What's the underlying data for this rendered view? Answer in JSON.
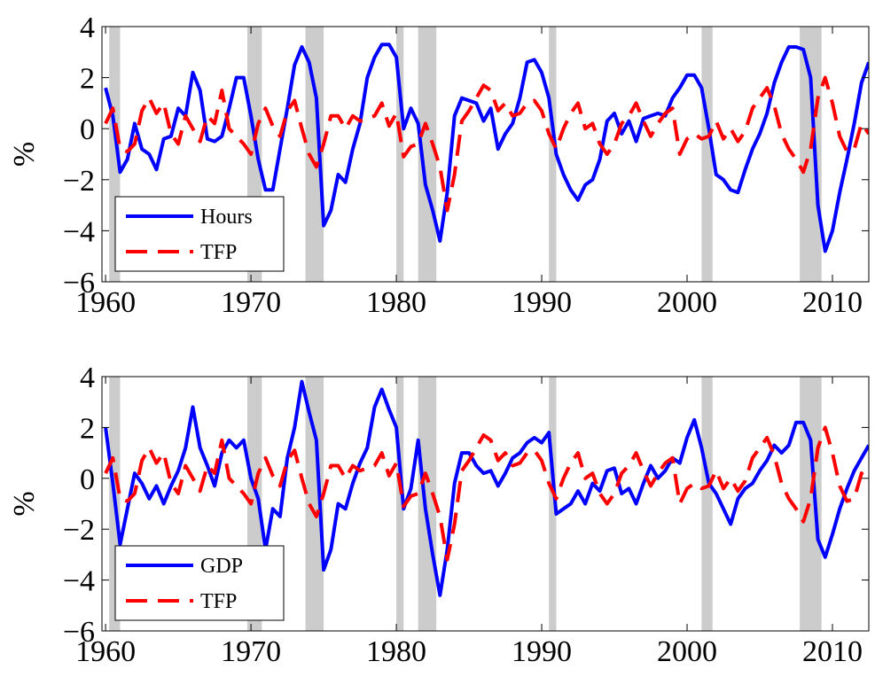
{
  "chart_data": [
    {
      "type": "line",
      "ylabel": "%",
      "legend": "lower left",
      "grid": false,
      "xlim": [
        1959.75,
        2012.5
      ],
      "ylim": [
        -6,
        4
      ],
      "xticks": [
        1960,
        1970,
        1980,
        1990,
        2000,
        2010
      ],
      "yticks": [
        {
          "value": -6,
          "label": "−6"
        },
        {
          "value": -4,
          "label": "−4"
        },
        {
          "value": -2,
          "label": "−2"
        },
        0,
        2,
        4
      ],
      "recessions": [
        [
          1960.25,
          1961.0
        ],
        [
          1969.75,
          1970.75
        ],
        [
          1973.75,
          1975.0
        ],
        [
          1980.0,
          1980.5
        ],
        [
          1981.5,
          1982.75
        ],
        [
          1990.5,
          1991.0
        ],
        [
          2001.0,
          2001.75
        ],
        [
          2007.75,
          2009.25
        ]
      ],
      "recession_color": "#cccccc",
      "x": [
        1960,
        1960.5,
        1961,
        1961.5,
        1962,
        1962.5,
        1963,
        1963.5,
        1964,
        1964.5,
        1965,
        1965.5,
        1966,
        1966.5,
        1967,
        1967.5,
        1968,
        1968.5,
        1969,
        1969.5,
        1970,
        1970.5,
        1971,
        1971.5,
        1972,
        1972.5,
        1973,
        1973.5,
        1974,
        1974.5,
        1975,
        1975.5,
        1976,
        1976.5,
        1977,
        1977.5,
        1978,
        1978.5,
        1979,
        1979.5,
        1980,
        1980.5,
        1981,
        1981.5,
        1982,
        1982.5,
        1983,
        1983.5,
        1984,
        1984.5,
        1985,
        1985.5,
        1986,
        1986.5,
        1987,
        1987.5,
        1988,
        1988.5,
        1989,
        1989.5,
        1990,
        1990.5,
        1991,
        1991.5,
        1992,
        1992.5,
        1993,
        1993.5,
        1994,
        1994.5,
        1995,
        1995.5,
        1996,
        1996.5,
        1997,
        1997.5,
        1998,
        1998.5,
        1999,
        1999.5,
        2000,
        2000.5,
        2001,
        2001.5,
        2002,
        2002.5,
        2003,
        2003.5,
        2004,
        2004.5,
        2005,
        2005.5,
        2006,
        2006.5,
        2007,
        2007.5,
        2008,
        2008.5,
        2009,
        2009.5,
        2010,
        2010.5,
        2011,
        2011.5,
        2012,
        2012.5
      ],
      "series": [
        {
          "name": "Hours",
          "color": "#0000ff",
          "style": "solid",
          "values": [
            1.6,
            0.5,
            -1.7,
            -1.2,
            0.2,
            -0.8,
            -1.0,
            -1.6,
            -0.4,
            -0.3,
            0.8,
            0.5,
            2.2,
            1.5,
            -0.4,
            -0.5,
            -0.3,
            0.8,
            2.0,
            2.0,
            0.5,
            -1.2,
            -2.4,
            -2.4,
            -0.8,
            0.8,
            2.5,
            3.2,
            2.6,
            1.2,
            -3.8,
            -3.2,
            -1.8,
            -2.1,
            -0.8,
            0.2,
            2.0,
            2.8,
            3.3,
            3.3,
            2.8,
            0.0,
            0.8,
            0.2,
            -2.2,
            -3.2,
            -4.4,
            -2.5,
            0.5,
            1.2,
            1.1,
            1.0,
            0.3,
            0.8,
            -0.8,
            -0.2,
            0.2,
            1.2,
            2.6,
            2.7,
            2.2,
            1.2,
            -1.0,
            -1.8,
            -2.4,
            -2.8,
            -2.2,
            -2.0,
            -1.2,
            0.3,
            0.6,
            -0.2,
            0.3,
            -0.5,
            0.4,
            0.5,
            0.6,
            0.5,
            1.2,
            1.6,
            2.1,
            2.1,
            1.6,
            0.0,
            -1.8,
            -2.0,
            -2.4,
            -2.5,
            -1.6,
            -0.8,
            -0.2,
            0.6,
            1.8,
            2.6,
            3.2,
            3.2,
            3.1,
            2.0,
            -3.0,
            -4.8,
            -4.0,
            -2.5,
            -1.2,
            0.2,
            1.8,
            2.6
          ]
        },
        {
          "name": "TFP",
          "color": "#ff0000",
          "style": "dashed",
          "values": [
            0.2,
            0.8,
            -0.8,
            -0.9,
            -0.6,
            0.7,
            1.2,
            0.6,
            1.0,
            -0.2,
            -0.6,
            0.5,
            0.0,
            -0.5,
            0.5,
            0.2,
            1.5,
            0.0,
            -0.3,
            -0.6,
            -1.0,
            0.2,
            0.8,
            0.1,
            -0.3,
            0.7,
            1.1,
            0.0,
            -1.0,
            -1.5,
            -0.6,
            0.5,
            0.5,
            0.0,
            0.5,
            0.3,
            0.4,
            0.5,
            1.0,
            0.1,
            0.6,
            -1.1,
            -0.7,
            -0.6,
            0.2,
            -0.6,
            -1.5,
            -3.2,
            -1.8,
            0.3,
            0.7,
            1.2,
            1.7,
            1.5,
            0.7,
            1.0,
            0.5,
            0.6,
            1.0,
            1.1,
            0.7,
            -0.2,
            -0.8,
            0.0,
            0.6,
            1.0,
            0.0,
            0.2,
            -0.6,
            -1.0,
            -0.6,
            0.2,
            0.5,
            1.0,
            0.3,
            -0.3,
            0.2,
            0.6,
            0.8,
            -1.0,
            -0.4,
            -0.2,
            -0.4,
            -0.3,
            0.3,
            -0.4,
            0.0,
            -0.5,
            -0.1,
            0.8,
            1.2,
            1.6,
            0.9,
            -0.2,
            -0.8,
            -1.2,
            -1.7,
            -0.8,
            1.2,
            2.0,
            1.0,
            -0.3,
            -0.9,
            -0.8,
            0.2,
            -0.2
          ]
        }
      ]
    },
    {
      "type": "line",
      "ylabel": "%",
      "legend": "lower left",
      "grid": false,
      "xlim": [
        1959.75,
        2012.5
      ],
      "ylim": [
        -6,
        4
      ],
      "xticks": [
        1960,
        1970,
        1980,
        1990,
        2000,
        2010
      ],
      "yticks": [
        {
          "value": -6,
          "label": "−6"
        },
        {
          "value": -4,
          "label": "−4"
        },
        {
          "value": -2,
          "label": "−2"
        },
        0,
        2,
        4
      ],
      "recessions": [
        [
          1960.25,
          1961.0
        ],
        [
          1969.75,
          1970.75
        ],
        [
          1973.75,
          1975.0
        ],
        [
          1980.0,
          1980.5
        ],
        [
          1981.5,
          1982.75
        ],
        [
          1990.5,
          1991.0
        ],
        [
          2001.0,
          2001.75
        ],
        [
          2007.75,
          2009.25
        ]
      ],
      "recession_color": "#cccccc",
      "x": [
        1960,
        1960.5,
        1961,
        1961.5,
        1962,
        1962.5,
        1963,
        1963.5,
        1964,
        1964.5,
        1965,
        1965.5,
        1966,
        1966.5,
        1967,
        1967.5,
        1968,
        1968.5,
        1969,
        1969.5,
        1970,
        1970.5,
        1971,
        1971.5,
        1972,
        1972.5,
        1973,
        1973.5,
        1974,
        1974.5,
        1975,
        1975.5,
        1976,
        1976.5,
        1977,
        1977.5,
        1978,
        1978.5,
        1979,
        1979.5,
        1980,
        1980.5,
        1981,
        1981.5,
        1982,
        1982.5,
        1983,
        1983.5,
        1984,
        1984.5,
        1985,
        1985.5,
        1986,
        1986.5,
        1987,
        1987.5,
        1988,
        1988.5,
        1989,
        1989.5,
        1990,
        1990.5,
        1991,
        1991.5,
        1992,
        1992.5,
        1993,
        1993.5,
        1994,
        1994.5,
        1995,
        1995.5,
        1996,
        1996.5,
        1997,
        1997.5,
        1998,
        1998.5,
        1999,
        1999.5,
        2000,
        2000.5,
        2001,
        2001.5,
        2002,
        2002.5,
        2003,
        2003.5,
        2004,
        2004.5,
        2005,
        2005.5,
        2006,
        2006.5,
        2007,
        2007.5,
        2008,
        2008.5,
        2009,
        2009.5,
        2010,
        2010.5,
        2011,
        2011.5,
        2012,
        2012.5
      ],
      "series": [
        {
          "name": "GDP",
          "color": "#0000ff",
          "style": "solid",
          "values": [
            2.0,
            -0.2,
            -2.6,
            -1.2,
            0.2,
            -0.2,
            -0.8,
            -0.3,
            -1.0,
            -0.3,
            0.3,
            1.2,
            2.8,
            1.2,
            0.5,
            -0.3,
            1.0,
            1.5,
            1.2,
            1.5,
            0.0,
            -0.8,
            -2.8,
            -1.2,
            -1.5,
            0.8,
            2.0,
            3.8,
            2.6,
            1.5,
            -3.6,
            -2.8,
            -1.0,
            -1.2,
            -0.2,
            0.6,
            1.2,
            2.8,
            3.5,
            2.7,
            2.0,
            -1.2,
            -0.4,
            1.5,
            -1.2,
            -3.0,
            -4.6,
            -2.8,
            -0.2,
            1.0,
            1.0,
            0.5,
            0.2,
            0.3,
            -0.3,
            0.2,
            0.8,
            1.0,
            1.4,
            1.6,
            1.4,
            1.8,
            -1.4,
            -1.2,
            -1.0,
            -0.5,
            -1.0,
            -0.2,
            -0.5,
            0.3,
            0.4,
            -0.6,
            -0.4,
            -1.0,
            -0.2,
            0.5,
            0.0,
            0.3,
            0.8,
            0.6,
            1.6,
            2.3,
            1.2,
            -0.2,
            -0.6,
            -1.2,
            -1.8,
            -0.8,
            -0.4,
            -0.2,
            0.3,
            0.7,
            1.3,
            1.0,
            1.3,
            2.2,
            2.2,
            1.5,
            -2.4,
            -3.1,
            -2.2,
            -1.2,
            -0.4,
            0.3,
            0.8,
            1.3
          ]
        },
        {
          "name": "TFP",
          "color": "#ff0000",
          "style": "dashed",
          "values": [
            0.2,
            0.8,
            -0.8,
            -0.9,
            -0.6,
            0.7,
            1.2,
            0.6,
            1.0,
            -0.2,
            -0.6,
            0.5,
            0.0,
            -0.5,
            0.5,
            0.2,
            1.5,
            0.0,
            -0.3,
            -0.6,
            -1.0,
            0.2,
            0.8,
            0.1,
            -0.3,
            0.7,
            1.1,
            0.0,
            -1.0,
            -1.5,
            -0.6,
            0.5,
            0.5,
            0.0,
            0.5,
            0.3,
            0.4,
            0.5,
            1.0,
            0.1,
            0.6,
            -1.1,
            -0.7,
            -0.6,
            0.2,
            -0.6,
            -1.5,
            -3.2,
            -1.8,
            0.3,
            0.7,
            1.2,
            1.7,
            1.5,
            0.7,
            1.0,
            0.5,
            0.6,
            1.0,
            1.1,
            0.7,
            -0.2,
            -0.8,
            0.0,
            0.6,
            1.0,
            0.0,
            0.2,
            -0.6,
            -1.0,
            -0.6,
            0.2,
            0.5,
            1.0,
            0.3,
            -0.3,
            0.2,
            0.6,
            0.8,
            -1.0,
            -0.4,
            -0.2,
            -0.4,
            -0.3,
            0.3,
            -0.4,
            0.0,
            -0.5,
            -0.1,
            0.8,
            1.2,
            1.6,
            0.9,
            -0.2,
            -0.8,
            -1.2,
            -1.7,
            -0.8,
            1.2,
            2.0,
            1.0,
            -0.3,
            -0.9,
            -0.8,
            0.2,
            -0.2
          ]
        }
      ]
    }
  ]
}
